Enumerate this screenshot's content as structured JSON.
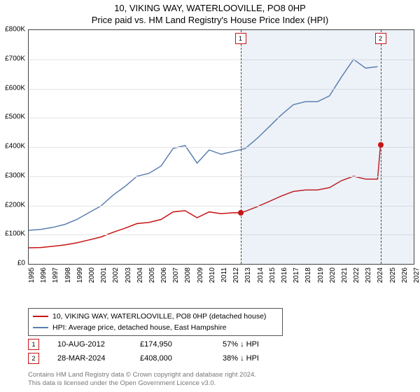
{
  "titles": {
    "main": "10, VIKING WAY, WATERLOOVILLE, PO8 0HP",
    "sub": "Price paid vs. HM Land Registry's House Price Index (HPI)"
  },
  "chart": {
    "type": "line",
    "background_color": "#ffffff",
    "grid_color": "#e5e5e5",
    "border_color": "#444444",
    "ylim": [
      0,
      800000
    ],
    "ytick_step": 100000,
    "y_ticks": [
      "£0",
      "£100K",
      "£200K",
      "£300K",
      "£400K",
      "£500K",
      "£600K",
      "£700K",
      "£800K"
    ],
    "xlim": [
      1995,
      2027
    ],
    "x_ticks": [
      1995,
      1996,
      1997,
      1998,
      1999,
      2000,
      2001,
      2002,
      2003,
      2004,
      2005,
      2006,
      2007,
      2008,
      2009,
      2010,
      2011,
      2012,
      2013,
      2014,
      2015,
      2016,
      2017,
      2018,
      2019,
      2020,
      2021,
      2022,
      2023,
      2024,
      2025,
      2026,
      2027
    ],
    "label_fontsize": 10,
    "shade": {
      "from_year": 2012.6,
      "to_year": 2027,
      "color": "rgba(110,150,200,0.12)"
    },
    "series": [
      {
        "id": "hpi",
        "label": "HPI: Average price, detached house, East Hampshire",
        "color": "#5b7fb0",
        "line_width": 1.5,
        "points": [
          [
            1995,
            115000
          ],
          [
            1996,
            118000
          ],
          [
            1997,
            125000
          ],
          [
            1998,
            135000
          ],
          [
            1999,
            152000
          ],
          [
            2000,
            175000
          ],
          [
            2001,
            198000
          ],
          [
            2002,
            235000
          ],
          [
            2003,
            265000
          ],
          [
            2004,
            300000
          ],
          [
            2005,
            310000
          ],
          [
            2006,
            335000
          ],
          [
            2007,
            395000
          ],
          [
            2008,
            405000
          ],
          [
            2009,
            345000
          ],
          [
            2010,
            390000
          ],
          [
            2011,
            375000
          ],
          [
            2012,
            385000
          ],
          [
            2013,
            395000
          ],
          [
            2014,
            430000
          ],
          [
            2015,
            470000
          ],
          [
            2016,
            510000
          ],
          [
            2017,
            545000
          ],
          [
            2018,
            555000
          ],
          [
            2019,
            555000
          ],
          [
            2020,
            575000
          ],
          [
            2021,
            640000
          ],
          [
            2022,
            700000
          ],
          [
            2023,
            670000
          ],
          [
            2024,
            675000
          ]
        ]
      },
      {
        "id": "property",
        "label": "10, VIKING WAY, WATERLOOVILLE, PO8 0HP (detached house)",
        "color": "#c81414",
        "line_width": 1.5,
        "points": [
          [
            1995,
            55000
          ],
          [
            1996,
            56000
          ],
          [
            1997,
            60000
          ],
          [
            1998,
            65000
          ],
          [
            1999,
            72000
          ],
          [
            2000,
            82000
          ],
          [
            2001,
            92000
          ],
          [
            2002,
            108000
          ],
          [
            2003,
            122000
          ],
          [
            2004,
            138000
          ],
          [
            2005,
            142000
          ],
          [
            2006,
            152000
          ],
          [
            2007,
            178000
          ],
          [
            2008,
            182000
          ],
          [
            2009,
            158000
          ],
          [
            2010,
            178000
          ],
          [
            2011,
            172000
          ],
          [
            2012,
            175000
          ],
          [
            2012.6,
            174950
          ],
          [
            2013,
            180000
          ],
          [
            2014,
            196000
          ],
          [
            2015,
            214000
          ],
          [
            2016,
            232000
          ],
          [
            2017,
            248000
          ],
          [
            2018,
            253000
          ],
          [
            2019,
            253000
          ],
          [
            2020,
            261000
          ],
          [
            2021,
            285000
          ],
          [
            2022,
            300000
          ],
          [
            2023,
            290000
          ],
          [
            2024,
            290000
          ],
          [
            2024.24,
            408000
          ]
        ]
      }
    ],
    "events": [
      {
        "n": "1",
        "year": 2012.6,
        "color": "#c81414",
        "dot_y": 174950
      },
      {
        "n": "2",
        "year": 2024.24,
        "color": "#c81414",
        "dot_y": 408000
      }
    ]
  },
  "legend": {
    "items": [
      {
        "color": "#c81414",
        "text": "10, VIKING WAY, WATERLOOVILLE, PO8 0HP (detached house)"
      },
      {
        "color": "#5b7fb0",
        "text": "HPI: Average price, detached house, East Hampshire"
      }
    ]
  },
  "events_table": {
    "rows": [
      {
        "n": "1",
        "color": "#c81414",
        "date": "10-AUG-2012",
        "price": "£174,950",
        "delta": "57% ↓ HPI"
      },
      {
        "n": "2",
        "color": "#c81414",
        "date": "28-MAR-2024",
        "price": "£408,000",
        "delta": "38% ↓ HPI"
      }
    ]
  },
  "footer": {
    "line1": "Contains HM Land Registry data © Crown copyright and database right 2024.",
    "line2": "This data is licensed under the Open Government Licence v3.0."
  }
}
